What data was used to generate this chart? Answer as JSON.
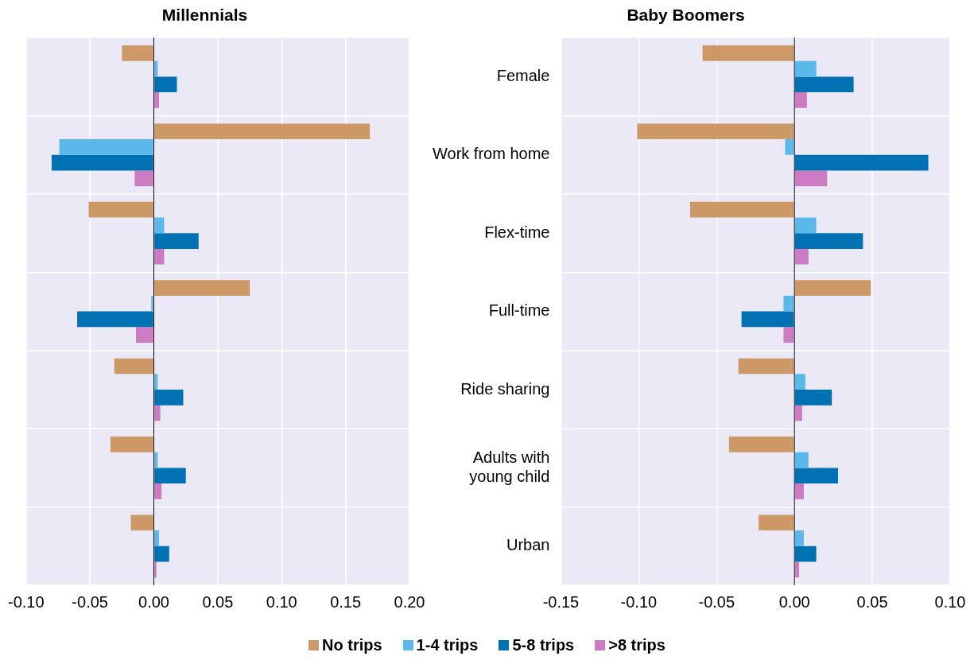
{
  "chart_data": [
    {
      "type": "bar",
      "title": "Millennials",
      "orientation": "horizontal",
      "categories": [
        null,
        null,
        null,
        null,
        null,
        null,
        null
      ],
      "tick_labels": "x",
      "grid": true,
      "xlim": [
        -0.1,
        0.2
      ],
      "xticks": [
        {
          "value": -0.1,
          "label": "-0.10"
        },
        {
          "value": -0.05,
          "label": "-0.05"
        },
        {
          "value": 0,
          "label": "0.00"
        },
        {
          "value": 0.05,
          "label": "0.05"
        },
        {
          "value": 0.1,
          "label": "0.10"
        },
        {
          "value": 0.15,
          "label": "0.15"
        },
        {
          "value": 0.2,
          "label": "0.20"
        }
      ],
      "series": [
        {
          "color": "#cc9966",
          "values": [
            -0.025,
            0.169,
            -0.051,
            0.075,
            -0.031,
            -0.034,
            -0.018
          ]
        },
        {
          "color": "#5bb8ea",
          "values": [
            0.003,
            -0.074,
            0.008,
            -0.002,
            0.003,
            0.003,
            0.004
          ]
        },
        {
          "color": "#0071b3",
          "values": [
            0.018,
            -0.08,
            0.035,
            -0.06,
            0.023,
            0.025,
            0.012
          ]
        },
        {
          "color": "#cc7ac2",
          "values": [
            0.004,
            -0.015,
            0.008,
            -0.014,
            0.005,
            0.006,
            0.002
          ]
        }
      ]
    },
    {
      "type": "bar",
      "title": "Baby Boomers",
      "orientation": "horizontal",
      "categories": [
        "Female",
        "Work from home",
        "Flex-time",
        "Full-time",
        "Ride sharing",
        "Adults with young child",
        "Urban"
      ],
      "grid": true,
      "legend": "bottom",
      "xlim": [
        -0.15,
        0.1
      ],
      "xticks": [
        {
          "value": -0.15,
          "label": "-0.15"
        },
        {
          "value": -0.1,
          "label": "-0.10"
        },
        {
          "value": -0.05,
          "label": "-0.05"
        },
        {
          "value": 0,
          "label": "0.00"
        },
        {
          "value": 0.05,
          "label": "0.05"
        },
        {
          "value": 0.1,
          "label": "0.10"
        }
      ],
      "series": [
        {
          "name": "No trips",
          "color": "#cc9966",
          "values": [
            -0.059,
            -0.101,
            -0.067,
            0.049,
            -0.036,
            -0.042,
            -0.023
          ]
        },
        {
          "name": "1-4 trips",
          "color": "#5bb8ea",
          "values": [
            0.014,
            -0.006,
            0.014,
            -0.007,
            0.007,
            0.009,
            0.006
          ]
        },
        {
          "name": "5-8 trips",
          "color": "#0071b3",
          "values": [
            0.038,
            0.086,
            0.044,
            -0.034,
            0.024,
            0.028,
            0.014
          ]
        },
        {
          "name": ">8 trips",
          "color": "#cc7ac2",
          "values": [
            0.008,
            0.021,
            0.009,
            -0.007,
            0.005,
            0.006,
            0.003
          ]
        }
      ]
    }
  ]
}
